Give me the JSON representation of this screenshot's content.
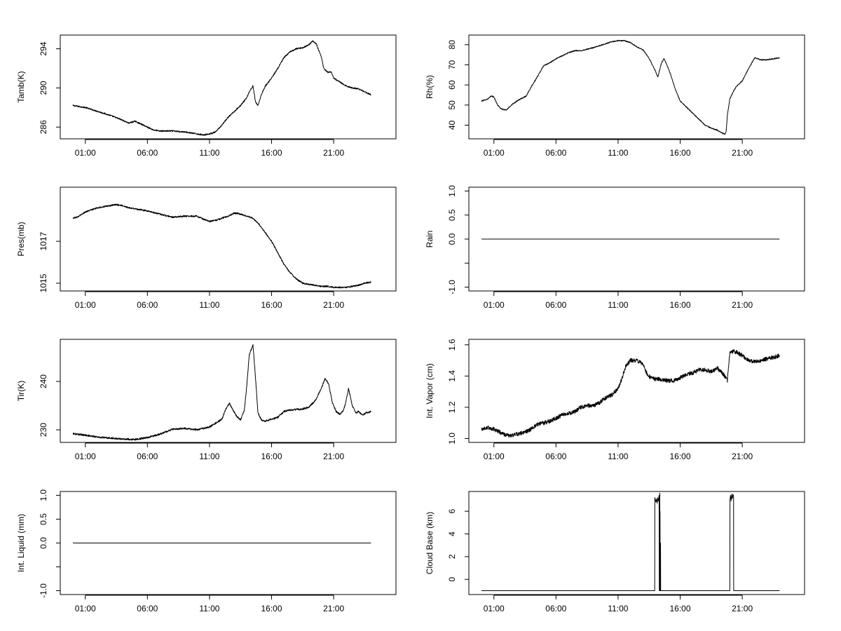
{
  "chart_data": [
    {
      "type": "line",
      "ylabel": "Tamb(K)",
      "xlim": [
        0,
        25
      ],
      "ylim": [
        284.8,
        295.4
      ],
      "xticks": [
        1,
        6,
        11,
        16,
        21
      ],
      "xticklabels": [
        "01:00",
        "06:00",
        "11:00",
        "16:00",
        "21:00"
      ],
      "yticks": [
        286,
        290,
        294
      ],
      "yticklabels": [
        "286",
        "290",
        "294"
      ],
      "series": [
        {
          "x": [
            0,
            0.5,
            1,
            1.5,
            2,
            3,
            4,
            4.5,
            5,
            5.5,
            6,
            6.5,
            7,
            8,
            9,
            10,
            10.5,
            11,
            11.5,
            12,
            12.5,
            13,
            13.5,
            14,
            14.2,
            14.5,
            14.7,
            14.9,
            15.2,
            15.5,
            16,
            16.5,
            17,
            17.5,
            18,
            18.5,
            19,
            19.3,
            19.6,
            20,
            20.2,
            20.5,
            20.8,
            21,
            21.5,
            22,
            22.5,
            23,
            23.5,
            24
          ],
          "y": [
            288.2,
            288.1,
            288.0,
            287.8,
            287.6,
            287.2,
            286.7,
            286.4,
            286.6,
            286.3,
            286.0,
            285.7,
            285.6,
            285.6,
            285.5,
            285.3,
            285.2,
            285.3,
            285.5,
            286.2,
            287.0,
            287.6,
            288.2,
            289.0,
            289.6,
            290.2,
            288.6,
            288.2,
            289.4,
            290.2,
            291.0,
            292.0,
            293.1,
            293.7,
            294.0,
            294.1,
            294.4,
            294.8,
            294.5,
            293.2,
            292.0,
            291.6,
            291.6,
            291.0,
            290.6,
            290.2,
            290.0,
            289.9,
            289.6,
            289.3
          ],
          "noise": 0.07
        }
      ]
    },
    {
      "type": "line",
      "ylabel": "Rh(%)",
      "xlim": [
        0,
        25
      ],
      "ylim": [
        33.2,
        84.8
      ],
      "xticks": [
        1,
        6,
        11,
        16,
        21
      ],
      "xticklabels": [
        "01:00",
        "06:00",
        "11:00",
        "16:00",
        "21:00"
      ],
      "yticks": [
        40,
        50,
        60,
        70,
        80
      ],
      "yticklabels": [
        "40",
        "50",
        "60",
        "70",
        "80"
      ],
      "series": [
        {
          "x": [
            0,
            0.5,
            0.8,
            1,
            1.3,
            1.6,
            2,
            2.5,
            3,
            3.3,
            3.6,
            4,
            4.5,
            5,
            5.5,
            6,
            6.5,
            7,
            7.5,
            8,
            9,
            10,
            10.5,
            11,
            11.5,
            12,
            12.5,
            13,
            13.3,
            13.6,
            14,
            14.2,
            14.5,
            14.7,
            15,
            15.3,
            15.6,
            16,
            16.5,
            17,
            17.5,
            18,
            18.5,
            19,
            19.4,
            19.6,
            19.7,
            19.8,
            20,
            20.3,
            20.5,
            21,
            21.5,
            22,
            22.5,
            23,
            23.5,
            24
          ],
          "y": [
            52,
            53,
            54.5,
            54,
            50,
            48,
            47.5,
            50.5,
            52.5,
            53.5,
            54.5,
            59,
            64,
            69.5,
            71,
            73,
            74.5,
            76,
            77,
            77,
            78.5,
            80.5,
            81.5,
            82,
            82,
            81,
            79,
            77.5,
            75,
            72,
            67,
            64,
            71,
            73,
            69,
            64,
            58,
            52,
            49,
            46,
            43,
            40,
            38.5,
            37.5,
            36,
            35.5,
            36.5,
            45,
            53,
            57,
            59,
            62,
            68,
            73.5,
            72.5,
            72.5,
            73,
            73.5
          ],
          "noise": 0.25
        }
      ]
    },
    {
      "type": "line",
      "ylabel": "Pres(mb)",
      "xlim": [
        0,
        25
      ],
      "ylim": [
        1014.63,
        1019.58
      ],
      "xticks": [
        1,
        6,
        11,
        16,
        21
      ],
      "xticklabels": [
        "01:00",
        "06:00",
        "11:00",
        "16:00",
        "21:00"
      ],
      "yticks": [
        1015,
        1017
      ],
      "yticklabels": [
        "1015",
        "1017"
      ],
      "series": [
        {
          "x": [
            0,
            0.5,
            1,
            2,
            3,
            3.5,
            4,
            4.5,
            5,
            6,
            7,
            8,
            9,
            10,
            10.5,
            11,
            11.5,
            12,
            12.5,
            13,
            13.5,
            14,
            14.5,
            15,
            15.5,
            16,
            16.5,
            17,
            17.5,
            18,
            18.5,
            19,
            19.5,
            20,
            20.5,
            21,
            21.5,
            22,
            22.5,
            23,
            23.5,
            24
          ],
          "y": [
            1018.1,
            1018.2,
            1018.4,
            1018.6,
            1018.7,
            1018.75,
            1018.7,
            1018.6,
            1018.55,
            1018.45,
            1018.3,
            1018.15,
            1018.2,
            1018.2,
            1018.05,
            1017.95,
            1018.0,
            1018.1,
            1018.2,
            1018.35,
            1018.3,
            1018.2,
            1018.1,
            1017.8,
            1017.4,
            1017.0,
            1016.45,
            1015.9,
            1015.5,
            1015.2,
            1015.0,
            1014.95,
            1014.9,
            1014.85,
            1014.85,
            1014.8,
            1014.8,
            1014.8,
            1014.85,
            1014.9,
            1015.0,
            1015.05
          ],
          "noise": 0.035
        }
      ]
    },
    {
      "type": "line",
      "ylabel": "Rain",
      "xlim": [
        0,
        25
      ],
      "ylim": [
        -1.08,
        1.08
      ],
      "xticks": [
        1,
        6,
        11,
        16,
        21
      ],
      "xticklabels": [
        "01:00",
        "06:00",
        "11:00",
        "16:00",
        "21:00"
      ],
      "yticks": [
        -1.0,
        -0.5,
        0.0,
        0.5,
        1.0
      ],
      "yticklabels": [
        "-1.0",
        "",
        "0.0",
        "0.5",
        "1.0"
      ],
      "series": [
        {
          "x": [
            0,
            24
          ],
          "y": [
            0,
            0
          ],
          "noise": 0
        }
      ]
    },
    {
      "type": "line",
      "ylabel": "Tir(K)",
      "xlim": [
        0,
        25
      ],
      "ylim": [
        227.4,
        248.7
      ],
      "xticks": [
        1,
        6,
        11,
        16,
        21
      ],
      "xticklabels": [
        "01:00",
        "06:00",
        "11:00",
        "16:00",
        "21:00"
      ],
      "yticks": [
        230,
        240
      ],
      "yticklabels": [
        "230",
        "240"
      ],
      "series": [
        {
          "x": [
            0,
            1,
            2,
            3,
            4,
            5,
            6,
            7,
            8,
            9,
            10,
            10.5,
            11,
            11.5,
            12,
            12.3,
            12.6,
            12.9,
            13.2,
            13.5,
            13.8,
            14,
            14.2,
            14.5,
            14.7,
            14.9,
            15.2,
            15.5,
            16,
            16.5,
            17,
            17.5,
            18,
            18.5,
            19,
            19.5,
            20,
            20.3,
            20.6,
            20.9,
            21.2,
            21.5,
            21.8,
            22,
            22.2,
            22.5,
            22.8,
            23,
            23.3,
            23.6,
            24
          ],
          "y": [
            229.2,
            228.9,
            228.5,
            228.3,
            228.1,
            228.0,
            228.4,
            229.1,
            230.1,
            230.3,
            230.0,
            230.3,
            230.6,
            231.4,
            232.2,
            234.2,
            235.5,
            234.0,
            232.8,
            232.0,
            234.0,
            239.0,
            245.5,
            247.5,
            241.0,
            233.5,
            232.0,
            231.8,
            232.2,
            232.6,
            233.8,
            234.1,
            234.2,
            234.3,
            234.7,
            236.0,
            238.5,
            240.6,
            239.5,
            235.5,
            233.8,
            233.2,
            234.0,
            236.0,
            238.5,
            235.0,
            233.5,
            233.8,
            233.0,
            233.5,
            233.8
          ],
          "noise": 0.18
        }
      ]
    },
    {
      "type": "line",
      "ylabel": "Int. Vapor (cm)",
      "xlim": [
        0,
        25
      ],
      "ylim": [
        0.975,
        1.635
      ],
      "xticks": [
        1,
        6,
        11,
        16,
        21
      ],
      "xticklabels": [
        "01:00",
        "06:00",
        "11:00",
        "16:00",
        "21:00"
      ],
      "yticks": [
        1.0,
        1.2,
        1.4,
        1.6
      ],
      "yticklabels": [
        "1.0",
        "1.2",
        "1.4",
        "1.6"
      ],
      "series": [
        {
          "x": [
            0,
            0.5,
            1,
            1.5,
            2,
            2.5,
            3,
            3.5,
            4,
            4.5,
            5,
            5.5,
            6,
            6.5,
            7,
            7.5,
            8,
            8.5,
            9,
            9.5,
            10,
            10.5,
            11,
            11.3,
            11.6,
            12,
            12.5,
            13,
            13.3,
            13.6,
            14,
            14.5,
            15,
            15.5,
            16,
            16.5,
            17,
            17.5,
            18,
            18.5,
            19,
            19.5,
            19.8,
            20,
            20.3,
            20.6,
            21,
            21.5,
            22,
            22.5,
            23,
            23.5,
            24
          ],
          "y": [
            1.06,
            1.07,
            1.06,
            1.04,
            1.02,
            1.02,
            1.03,
            1.04,
            1.06,
            1.09,
            1.1,
            1.11,
            1.13,
            1.15,
            1.16,
            1.17,
            1.2,
            1.21,
            1.21,
            1.23,
            1.26,
            1.28,
            1.32,
            1.38,
            1.46,
            1.5,
            1.5,
            1.48,
            1.42,
            1.39,
            1.38,
            1.38,
            1.37,
            1.37,
            1.39,
            1.41,
            1.42,
            1.44,
            1.44,
            1.43,
            1.45,
            1.41,
            1.37,
            1.55,
            1.56,
            1.55,
            1.53,
            1.5,
            1.49,
            1.5,
            1.51,
            1.52,
            1.53
          ],
          "noise": 0.013
        }
      ]
    },
    {
      "type": "line",
      "ylabel": "Int. Liquid (mm)",
      "xlim": [
        0,
        25
      ],
      "ylim": [
        -1.08,
        1.08
      ],
      "xticks": [
        1,
        6,
        11,
        16,
        21
      ],
      "xticklabels": [
        "01:00",
        "06:00",
        "11:00",
        "16:00",
        "21:00"
      ],
      "yticks": [
        -1.0,
        -0.5,
        0.0,
        0.5,
        1.0
      ],
      "yticklabels": [
        "-1.0",
        "",
        "0.0",
        "0.5",
        "1.0"
      ],
      "series": [
        {
          "x": [
            0,
            24
          ],
          "y": [
            0,
            0
          ],
          "noise": 0
        }
      ]
    },
    {
      "type": "line",
      "ylabel": "Cloud Base (km)",
      "xlim": [
        0,
        25
      ],
      "ylim": [
        -1.34,
        7.74
      ],
      "xticks": [
        1,
        6,
        11,
        16,
        21
      ],
      "xticklabels": [
        "01:00",
        "06:00",
        "11:00",
        "16:00",
        "21:00"
      ],
      "yticks": [
        0,
        2,
        4,
        6
      ],
      "yticklabels": [
        "0",
        "2",
        "4",
        "6"
      ],
      "series": [
        {
          "x": [
            0,
            13.95,
            13.96,
            14.05,
            14.1,
            14.15,
            14.2,
            14.25,
            14.3,
            14.32,
            14.34,
            14.35,
            14.36,
            14.37,
            14.38,
            14.39,
            14.4,
            14.41,
            14.42,
            14.43,
            20.0,
            20.01,
            20.05,
            20.1,
            20.15,
            20.2,
            20.25,
            20.3,
            20.31,
            24
          ],
          "y": [
            -1,
            -1,
            7.2,
            6.8,
            7.1,
            6.7,
            7.2,
            6.9,
            7.4,
            -1,
            3.5,
            -1,
            7.6,
            -1,
            6.0,
            -1,
            3.0,
            -1,
            3.2,
            -1,
            -1,
            7.0,
            7.4,
            6.9,
            7.5,
            7.1,
            7.5,
            7.3,
            -1,
            -1
          ],
          "noise": 0
        }
      ]
    }
  ]
}
